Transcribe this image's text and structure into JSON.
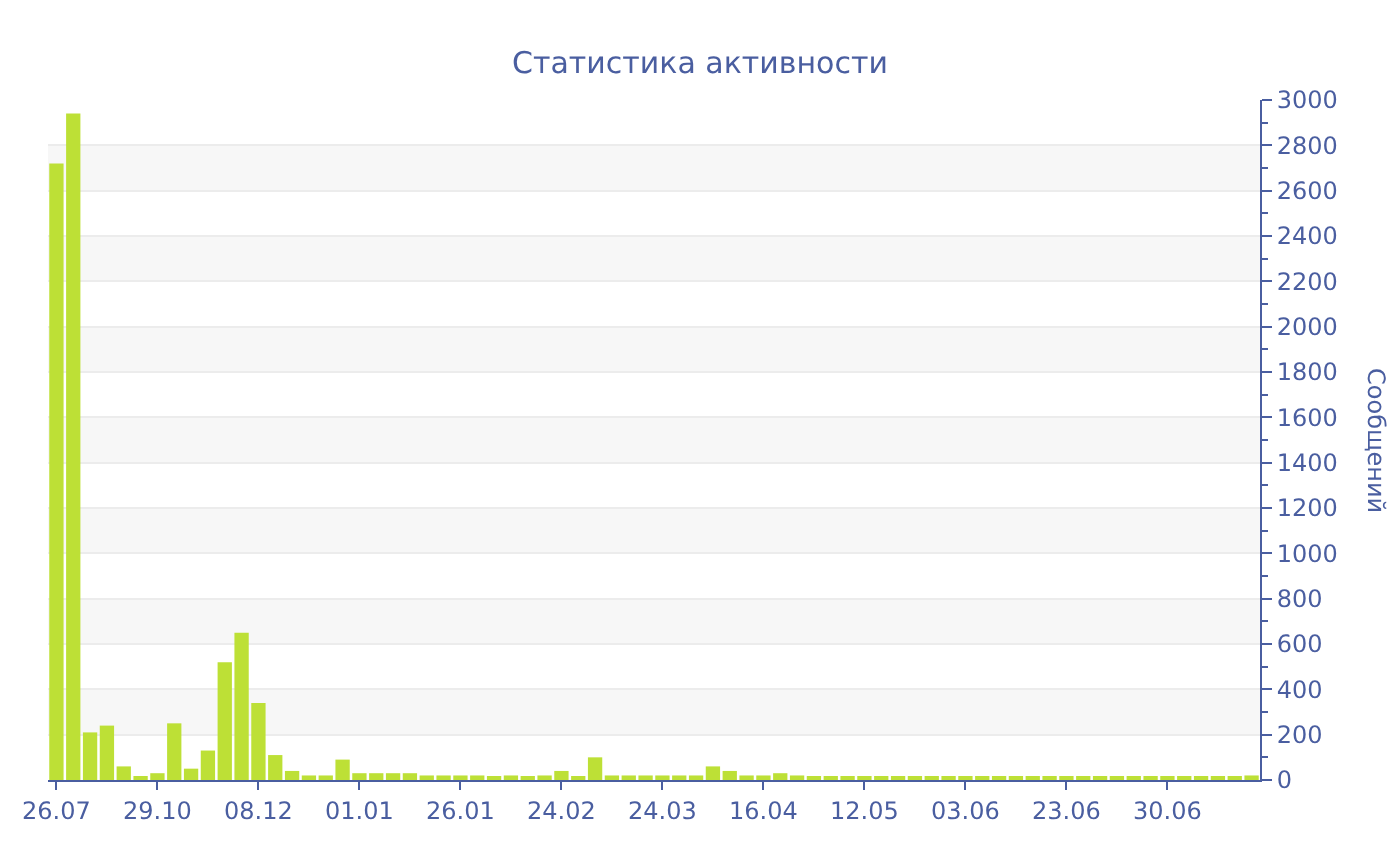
{
  "chart_data": {
    "type": "bar",
    "title": "Статистика активности",
    "ylabel": "Сообщений",
    "categories": [
      "26.07",
      null,
      null,
      null,
      null,
      null,
      "29.10",
      null,
      null,
      null,
      null,
      null,
      "08.12",
      null,
      null,
      null,
      null,
      null,
      "01.01",
      null,
      null,
      null,
      null,
      null,
      "26.01",
      null,
      null,
      null,
      null,
      null,
      "24.02",
      null,
      null,
      null,
      null,
      null,
      "24.03",
      null,
      null,
      null,
      null,
      null,
      "16.04",
      null,
      null,
      null,
      null,
      null,
      "12.05",
      null,
      null,
      null,
      null,
      null,
      "03.06",
      null,
      null,
      null,
      null,
      null,
      "23.06",
      null,
      null,
      null,
      null,
      null,
      "30.06",
      null,
      null,
      null,
      null,
      null
    ],
    "values": [
      2720,
      2940,
      210,
      240,
      60,
      10,
      30,
      250,
      50,
      130,
      520,
      650,
      340,
      110,
      40,
      20,
      20,
      90,
      30,
      30,
      30,
      30,
      20,
      20,
      20,
      20,
      10,
      20,
      10,
      20,
      40,
      10,
      100,
      20,
      20,
      20,
      20,
      20,
      20,
      60,
      40,
      20,
      20,
      30,
      20,
      10,
      10,
      10,
      10,
      10,
      10,
      10,
      10,
      10,
      10,
      10,
      10,
      10,
      10,
      10,
      10,
      10,
      10,
      10,
      10,
      10,
      10,
      10,
      10,
      10,
      10,
      20
    ],
    "color": "#bde036",
    "ylim": [
      0,
      3000
    ],
    "yticks": [
      0,
      200,
      400,
      600,
      800,
      1000,
      1200,
      1400,
      1600,
      1800,
      2000,
      2200,
      2400,
      2600,
      2800,
      3000
    ],
    "grid": "y",
    "legend": false
  }
}
